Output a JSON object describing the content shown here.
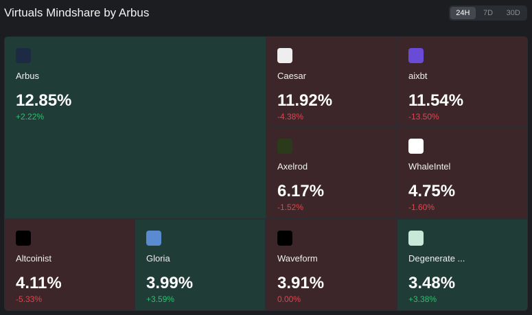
{
  "header": {
    "title": "Virtuals Mindshare by Arbus",
    "tabs": [
      "24H",
      "7D",
      "30D"
    ],
    "active_tab": 0
  },
  "tiles": [
    {
      "name": "Arbus",
      "share": "12.85%",
      "change": "+2.22%",
      "bg": "#1f3d36",
      "change_color": "#2fbf71"
    },
    {
      "name": "Caesar",
      "share": "11.92%",
      "change": "-4.38%",
      "bg": "#3d2629",
      "change_color": "#e0454f"
    },
    {
      "name": "aixbt",
      "share": "11.54%",
      "change": "-13.50%",
      "bg": "#3d2629",
      "change_color": "#e0454f"
    },
    {
      "name": "Axelrod",
      "share": "6.17%",
      "change": "-1.52%",
      "bg": "#3d2629",
      "change_color": "#e0454f"
    },
    {
      "name": "WhaleIntel",
      "share": "4.75%",
      "change": "-1.60%",
      "bg": "#3d2629",
      "change_color": "#e0454f"
    },
    {
      "name": "Altcoinist",
      "share": "4.11%",
      "change": "-5.33%",
      "bg": "#3d2629",
      "change_color": "#e0454f"
    },
    {
      "name": "Gloria",
      "share": "3.99%",
      "change": "+3.59%",
      "bg": "#1f3d36",
      "change_color": "#2fbf71"
    },
    {
      "name": "Waveform",
      "share": "3.91%",
      "change": "0.00%",
      "bg": "#3d2629",
      "change_color": "#e0454f"
    },
    {
      "name": "Degenerate ...",
      "share": "3.48%",
      "change": "+3.38%",
      "bg": "#1f3d36",
      "change_color": "#2fbf71"
    }
  ]
}
